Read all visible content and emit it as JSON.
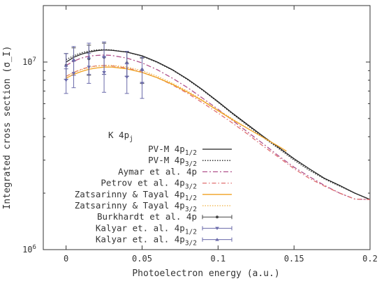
{
  "chart_data": {
    "type": "line",
    "title": "",
    "xlabel": "Photoelectron energy (a.u.)",
    "ylabel": "Integrated cross section (σ_I)",
    "xlim": [
      -0.015,
      0.2
    ],
    "ylim": [
      1000000,
      20000000
    ],
    "yscale": "log",
    "xticks": [
      {
        "value": 0,
        "label": "0"
      },
      {
        "value": 0.05,
        "label": "0.05"
      },
      {
        "value": 0.1,
        "label": "0.1"
      },
      {
        "value": 0.15,
        "label": "0.15"
      },
      {
        "value": 0.2,
        "label": "0.2"
      }
    ],
    "yticks": [
      {
        "value": 1000000,
        "base": "10",
        "exp": "6"
      },
      {
        "value": 10000000,
        "base": "10",
        "exp": "7"
      }
    ],
    "legend_title": {
      "base": "K 4p",
      "sub": "j"
    },
    "legend_position": "center-left",
    "grid": false,
    "series": [
      {
        "name": {
          "base": "PV-M 4p",
          "sub": "1/2"
        },
        "color": "#222222",
        "dash": "",
        "kind": "line",
        "x": [
          0,
          0.005,
          0.01,
          0.015,
          0.02,
          0.025,
          0.03,
          0.04,
          0.05,
          0.06,
          0.07,
          0.08,
          0.09,
          0.1,
          0.11,
          0.12,
          0.13,
          0.14,
          0.15,
          0.16,
          0.17,
          0.18,
          0.19,
          0.2
        ],
        "y": [
          10000000,
          10600000,
          11000000,
          11300000,
          11500000,
          11600000,
          11550000,
          11300000,
          10800000,
          10000000,
          9100000,
          8100000,
          7100000,
          6150000,
          5300000,
          4600000,
          4000000,
          3500000,
          3050000,
          2700000,
          2400000,
          2200000,
          2000000,
          1850000
        ]
      },
      {
        "name": {
          "base": "PV-M 4p",
          "sub": "3/2"
        },
        "color": "#222222",
        "dash": "1.5,2",
        "kind": "line",
        "x": [
          0,
          0.005,
          0.01,
          0.015,
          0.02,
          0.025,
          0.03,
          0.04,
          0.05,
          0.06,
          0.07,
          0.08,
          0.09,
          0.1,
          0.11,
          0.12,
          0.13,
          0.14,
          0.15,
          0.16,
          0.17,
          0.18,
          0.19,
          0.2
        ],
        "y": [
          10300000,
          10800000,
          11200000,
          11450000,
          11600000,
          11650000,
          11600000,
          11300000,
          10750000,
          9950000,
          9050000,
          8050000,
          7050000,
          6100000,
          5250000,
          4550000,
          3950000,
          3450000,
          3000000,
          2650000,
          2380000,
          2180000,
          2000000,
          1850000
        ]
      },
      {
        "name": {
          "base": "Aymar et al. 4p",
          "sub": ""
        },
        "color": "#b0508a",
        "dash": "7,3,2,3",
        "kind": "line",
        "x": [
          0,
          0.005,
          0.01,
          0.015,
          0.02,
          0.025,
          0.03,
          0.04,
          0.05,
          0.06,
          0.07,
          0.08,
          0.09,
          0.1,
          0.11,
          0.12,
          0.13,
          0.14,
          0.15,
          0.16,
          0.17,
          0.18,
          0.19,
          0.2
        ],
        "y": [
          9600000,
          10100000,
          10500000,
          10750000,
          10850000,
          10900000,
          10850000,
          10500000,
          9900000,
          9100000,
          8200000,
          7300000,
          6400000,
          5600000,
          4850000,
          4200000,
          3650000,
          3150000,
          2750000,
          2450000,
          2200000,
          2000000,
          1860000,
          1850000
        ]
      },
      {
        "name": {
          "base": "Petrov et al. 4p",
          "sub": "3/2"
        },
        "color": "#e07070",
        "dash": "6,3,1.5,3",
        "kind": "line",
        "x": [
          0,
          0.005,
          0.01,
          0.015,
          0.02,
          0.025,
          0.03,
          0.04,
          0.05,
          0.06,
          0.07,
          0.08,
          0.09,
          0.1,
          0.11,
          0.12,
          0.13,
          0.14,
          0.15,
          0.16,
          0.17,
          0.18,
          0.19,
          0.2
        ],
        "y": [
          8400000,
          8800000,
          9150000,
          9400000,
          9550000,
          9600000,
          9550000,
          9300000,
          8850000,
          8250000,
          7550000,
          6800000,
          6050000,
          5350000,
          4700000,
          4100000,
          3550000,
          3100000,
          2700000,
          2400000,
          2180000,
          2000000,
          1860000,
          1850000
        ]
      },
      {
        "name": {
          "base": "Zatsarinny & Tayal 4p",
          "sub": "1/2"
        },
        "color": "#f0a020",
        "dash": "",
        "kind": "line",
        "x": [
          0,
          0.005,
          0.01,
          0.015,
          0.02,
          0.025,
          0.03,
          0.04,
          0.05,
          0.06,
          0.07,
          0.08,
          0.09,
          0.1,
          0.11,
          0.12,
          0.13,
          0.14,
          0.145
        ],
        "y": [
          8200000,
          8600000,
          8900000,
          9150000,
          9300000,
          9400000,
          9400000,
          9200000,
          8800000,
          8250000,
          7600000,
          6900000,
          6200000,
          5500000,
          4900000,
          4400000,
          3950000,
          3550000,
          3350000
        ]
      },
      {
        "name": {
          "base": "Zatsarinny & Tayal 4p",
          "sub": "3/2"
        },
        "color": "#f0b040",
        "dash": "1.5,2",
        "kind": "line",
        "x": [
          0,
          0.005,
          0.01,
          0.015,
          0.02,
          0.025,
          0.03,
          0.04,
          0.05,
          0.06,
          0.07,
          0.08,
          0.09,
          0.1,
          0.11,
          0.12,
          0.13,
          0.14,
          0.145
        ],
        "y": [
          8400000,
          8800000,
          9100000,
          9350000,
          9500000,
          9600000,
          9600000,
          9400000,
          9000000,
          8400000,
          7700000,
          7000000,
          6250000,
          5550000,
          4950000,
          4400000,
          3950000,
          3550000,
          3350000
        ]
      },
      {
        "name": {
          "base": "Burkhardt et al. 4p",
          "sub": ""
        },
        "color": "#444444",
        "dash": "",
        "kind": "points",
        "marker": "circle",
        "x": [
          0,
          0.005,
          0.015,
          0.025,
          0.04,
          0.05
        ],
        "y": [
          9600000,
          10200000,
          10400000,
          10600000,
          9900000,
          9100000
        ],
        "yerr": [
          1500000,
          1700000,
          1900000,
          2000000,
          1500000,
          1400000
        ]
      },
      {
        "name": {
          "base": "Kalyar et. al. 4p",
          "sub": "1/2"
        },
        "color": "#6a6aaa",
        "dash": "",
        "kind": "points",
        "marker": "triangle-down",
        "x": [
          0,
          0.005,
          0.015,
          0.025,
          0.04,
          0.05
        ],
        "y": [
          8000000,
          8700000,
          9400000,
          8800000,
          8300000,
          7700000
        ],
        "yerr": [
          1200000,
          1400000,
          1700000,
          1900000,
          1500000,
          1300000
        ]
      },
      {
        "name": {
          "base": "Kalyar et. al. 4p",
          "sub": "3/2"
        },
        "color": "#6a6aaa",
        "dash": "",
        "kind": "points",
        "marker": "triangle-up",
        "x": [
          0,
          0.005,
          0.015,
          0.025,
          0.04,
          0.05
        ],
        "y": [
          9600000,
          10300000,
          10600000,
          10700000,
          9900000,
          9200000
        ],
        "yerr": [
          1500000,
          1800000,
          2000000,
          2100000,
          1500000,
          1400000
        ]
      }
    ]
  }
}
